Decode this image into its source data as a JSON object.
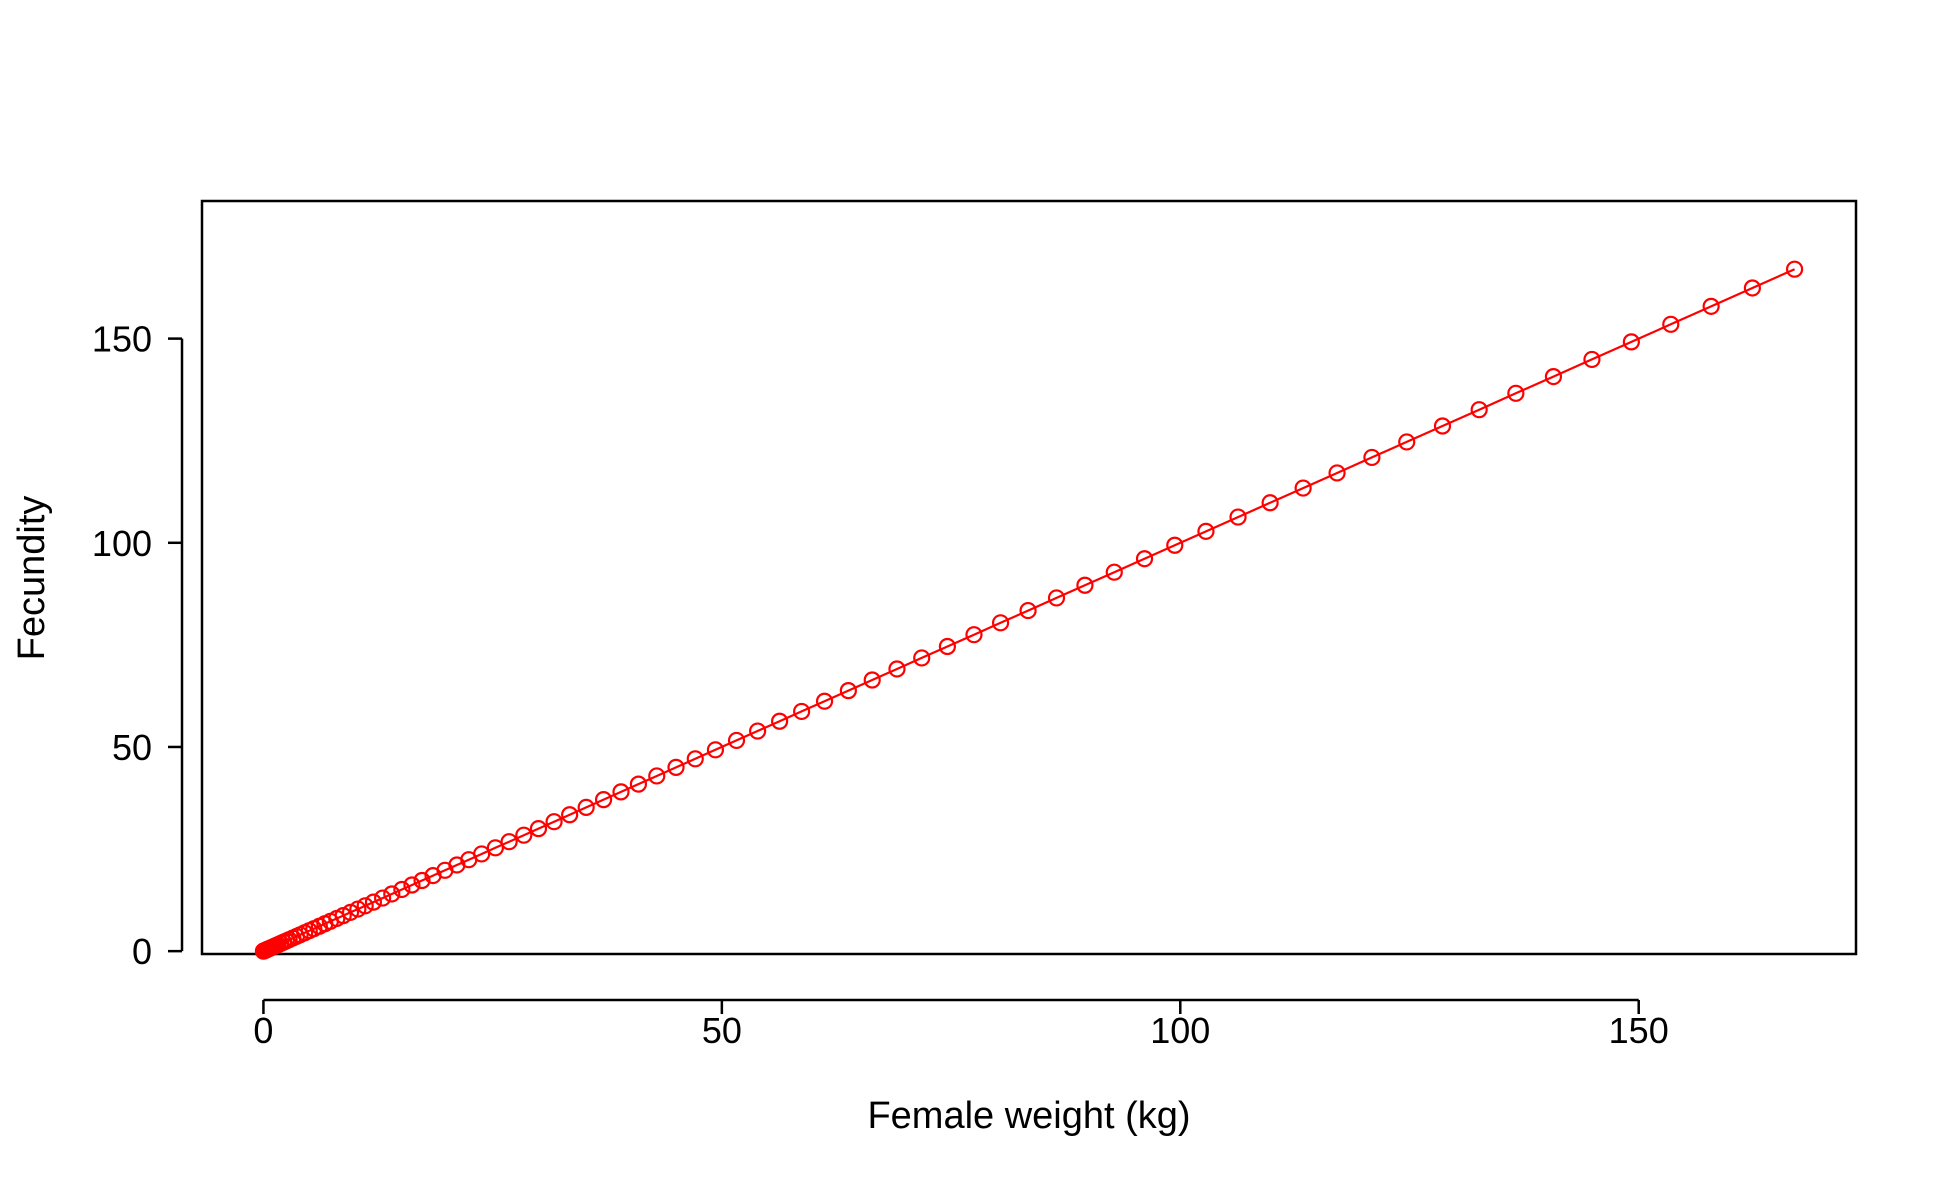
{
  "chart_data": {
    "type": "line",
    "title": "",
    "xlabel": "Female weight (kg)",
    "ylabel": "Fecundity",
    "xlim": [
      -6.7,
      173.7
    ],
    "ylim": [
      -0.7,
      183.7
    ],
    "xticks": [
      0,
      50,
      100,
      150
    ],
    "yticks": [
      0,
      50,
      100,
      150
    ],
    "grid": false,
    "legend": "none",
    "series_color": "#ff0000",
    "marker": "open-circle",
    "series": [
      {
        "x": [
          0.0,
          0.1,
          0.2,
          0.3,
          0.4,
          0.5,
          0.6,
          0.8,
          1.0,
          1.2,
          1.4,
          1.6,
          1.9,
          2.2,
          2.5,
          2.8,
          3.2,
          3.6,
          4.0,
          4.5,
          5.0,
          5.5,
          6.1,
          6.7,
          7.3,
          8.0,
          8.7,
          9.5,
          10.3,
          11.1,
          12.0,
          13.0,
          14.0,
          15.1,
          16.2,
          17.3,
          18.5,
          19.8,
          21.1,
          22.4,
          23.8,
          25.3,
          26.8,
          28.4,
          30.0,
          31.7,
          33.4,
          35.2,
          37.1,
          39.0,
          40.9,
          42.9,
          45.0,
          47.1,
          49.3,
          51.6,
          53.9,
          56.3,
          58.7,
          61.2,
          63.8,
          66.4,
          69.1,
          71.8,
          74.6,
          77.5,
          80.4,
          83.4,
          86.5,
          89.6,
          92.8,
          96.1,
          99.4,
          102.8,
          106.3,
          109.8,
          113.4,
          117.1,
          120.9,
          124.7,
          128.6,
          132.6,
          136.6,
          140.7,
          144.9,
          149.2,
          153.5,
          157.9,
          162.4,
          167.0
        ],
        "y": [
          0.0,
          0.1,
          0.2,
          0.3,
          0.4,
          0.5,
          0.6,
          0.8,
          1.0,
          1.2,
          1.4,
          1.6,
          1.9,
          2.2,
          2.5,
          2.8,
          3.2,
          3.6,
          4.0,
          4.5,
          5.0,
          5.5,
          6.1,
          6.7,
          7.3,
          8.0,
          8.7,
          9.5,
          10.3,
          11.1,
          12.0,
          13.0,
          14.0,
          15.1,
          16.2,
          17.3,
          18.5,
          19.8,
          21.1,
          22.4,
          23.8,
          25.3,
          26.8,
          28.4,
          30.0,
          31.7,
          33.4,
          35.2,
          37.1,
          39.0,
          40.9,
          42.9,
          45.0,
          47.1,
          49.3,
          51.6,
          53.9,
          56.3,
          58.7,
          61.2,
          63.8,
          66.4,
          69.1,
          71.8,
          74.6,
          77.5,
          80.4,
          83.4,
          86.5,
          89.6,
          92.8,
          96.1,
          99.4,
          102.8,
          106.3,
          109.8,
          113.4,
          117.1,
          120.9,
          124.7,
          128.6,
          132.6,
          136.6,
          140.7,
          144.9,
          149.2,
          153.5,
          157.9,
          162.4,
          167.0
        ]
      }
    ]
  }
}
